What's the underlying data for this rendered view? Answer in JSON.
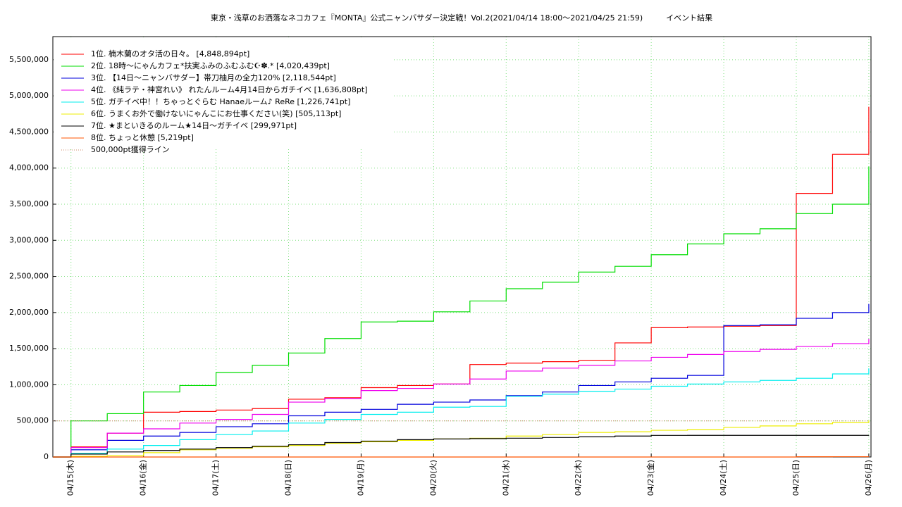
{
  "chart_data": {
    "type": "line",
    "step": true,
    "title": "東京・浅草のお洒落なネコカフェ『MONTA』公式ニャンバサダー決定戦！Vol.2(2021/04/14 18:00〜2021/04/25 21:59)　　　イベント結果",
    "x": [
      -0.25,
      0,
      0.5,
      1,
      1.5,
      2,
      2.5,
      3,
      3.5,
      4,
      4.5,
      5,
      5.5,
      6,
      6.5,
      7,
      7.5,
      8,
      8.5,
      9,
      9.5,
      10,
      10.5,
      11
    ],
    "xlim": [
      -0.25,
      11.03
    ],
    "xticks": [
      {
        "value": 0,
        "label": "04/15(木)"
      },
      {
        "value": 1,
        "label": "04/16(金)"
      },
      {
        "value": 2,
        "label": "04/17(土)"
      },
      {
        "value": 3,
        "label": "04/18(日)"
      },
      {
        "value": 4,
        "label": "04/19(月)"
      },
      {
        "value": 5,
        "label": "04/20(火)"
      },
      {
        "value": 6,
        "label": "04/21(水)"
      },
      {
        "value": 7,
        "label": "04/22(木)"
      },
      {
        "value": 8,
        "label": "04/23(金)"
      },
      {
        "value": 9,
        "label": "04/24(土)"
      },
      {
        "value": 10,
        "label": "04/25(日)"
      },
      {
        "value": 11,
        "label": "04/26(月)"
      }
    ],
    "ylim": [
      0,
      5820000
    ],
    "yticks": [
      0,
      {
        "value": 500000,
        "label": "500,000"
      },
      {
        "value": 1000000,
        "label": "1,000,000"
      },
      {
        "value": 1500000,
        "label": "1,500,000"
      },
      {
        "value": 2000000,
        "label": "2,000,000"
      },
      {
        "value": 2500000,
        "label": "2,500,000"
      },
      {
        "value": 3000000,
        "label": "3,000,000"
      },
      {
        "value": 3500000,
        "label": "3,500,000"
      },
      {
        "value": 4000000,
        "label": "4,000,000"
      },
      {
        "value": 4500000,
        "label": "4,500,000"
      },
      {
        "value": 5000000,
        "label": "5,000,000"
      },
      {
        "value": 5500000,
        "label": "5,500,000"
      }
    ],
    "grid": true,
    "legend": "upper left",
    "series": [
      {
        "name": "1位. 楠木蘭のオタ活の日々。 [4,848,894pt]",
        "color": "#ff0000",
        "values": [
          0,
          140000,
          330000,
          620000,
          630000,
          650000,
          670000,
          800000,
          820000,
          960000,
          990000,
          1010000,
          1280000,
          1300000,
          1320000,
          1340000,
          1580000,
          1790000,
          1800000,
          1810000,
          1820000,
          3650000,
          4190000,
          4848894
        ]
      },
      {
        "name": "2位. 18時〜にゃんカフェ*扶実ふみのふむふむ☪✽.* [4,020,439pt]",
        "color": "#00dd00",
        "values": [
          0,
          500000,
          600000,
          900000,
          990000,
          1170000,
          1270000,
          1440000,
          1640000,
          1870000,
          1880000,
          2010000,
          2160000,
          2330000,
          2420000,
          2560000,
          2640000,
          2800000,
          2950000,
          3090000,
          3160000,
          3370000,
          3500000,
          4020439
        ]
      },
      {
        "name": "3位. 【14日〜ニャンバサダー】帯刀柚月の全力120% [2,118,544pt]",
        "color": "#0000dd",
        "values": [
          0,
          100000,
          230000,
          290000,
          340000,
          420000,
          460000,
          570000,
          620000,
          660000,
          730000,
          760000,
          790000,
          850000,
          900000,
          990000,
          1040000,
          1090000,
          1130000,
          1820000,
          1830000,
          1920000,
          2000000,
          2118544
        ]
      },
      {
        "name": "4位. 《純ラテ・神宮れい》 れたんルーム4月14日からガチイベ [1,636,808pt]",
        "color": "#ee00ee",
        "values": [
          0,
          130000,
          330000,
          390000,
          470000,
          520000,
          590000,
          760000,
          810000,
          920000,
          950000,
          1010000,
          1080000,
          1190000,
          1230000,
          1270000,
          1330000,
          1380000,
          1420000,
          1460000,
          1490000,
          1530000,
          1570000,
          1636808
        ]
      },
      {
        "name": "5位. ガチイベ中！！ちゃっとぐらむ Hanaeルーム♪ ReRe [1,226,741pt]",
        "color": "#00eeee",
        "values": [
          0,
          50000,
          110000,
          160000,
          240000,
          310000,
          360000,
          470000,
          520000,
          590000,
          620000,
          690000,
          700000,
          840000,
          870000,
          910000,
          940000,
          980000,
          1010000,
          1040000,
          1060000,
          1090000,
          1150000,
          1226741
        ]
      },
      {
        "name": "6位. うまくお外で働けないにゃんこにお仕事ください(笑) [505,113pt]",
        "color": "#eeee00",
        "values": [
          0,
          10000,
          20000,
          60000,
          100000,
          120000,
          140000,
          160000,
          190000,
          210000,
          230000,
          250000,
          260000,
          290000,
          310000,
          340000,
          350000,
          370000,
          380000,
          410000,
          430000,
          460000,
          480000,
          505113
        ]
      },
      {
        "name": "7位. ★まといきるのルーム★14日〜ガチイベ [299,971pt]",
        "color": "#000000",
        "values": [
          0,
          40000,
          70000,
          90000,
          110000,
          130000,
          150000,
          170000,
          200000,
          220000,
          240000,
          250000,
          255000,
          260000,
          270000,
          280000,
          290000,
          299000,
          299500,
          299700,
          299800,
          299900,
          299950,
          299971
        ]
      },
      {
        "name": "8位. ちょっと休憩 [5,219pt]",
        "color": "#ff5500",
        "values": [
          0,
          0,
          0,
          0,
          0,
          0,
          0,
          0,
          0,
          0,
          0,
          0,
          0,
          0,
          0,
          0,
          0,
          0,
          0,
          0,
          0,
          4000,
          4500,
          5219
        ]
      },
      {
        "name": "500,000pt獲得ライン",
        "color": "#cc8866",
        "dotted": true,
        "values": [
          500000,
          500000,
          500000,
          500000,
          500000,
          500000,
          500000,
          500000,
          500000,
          500000,
          500000,
          500000,
          500000,
          500000,
          500000,
          500000,
          500000,
          500000,
          500000,
          500000,
          500000,
          500000,
          500000,
          500000
        ]
      }
    ]
  }
}
